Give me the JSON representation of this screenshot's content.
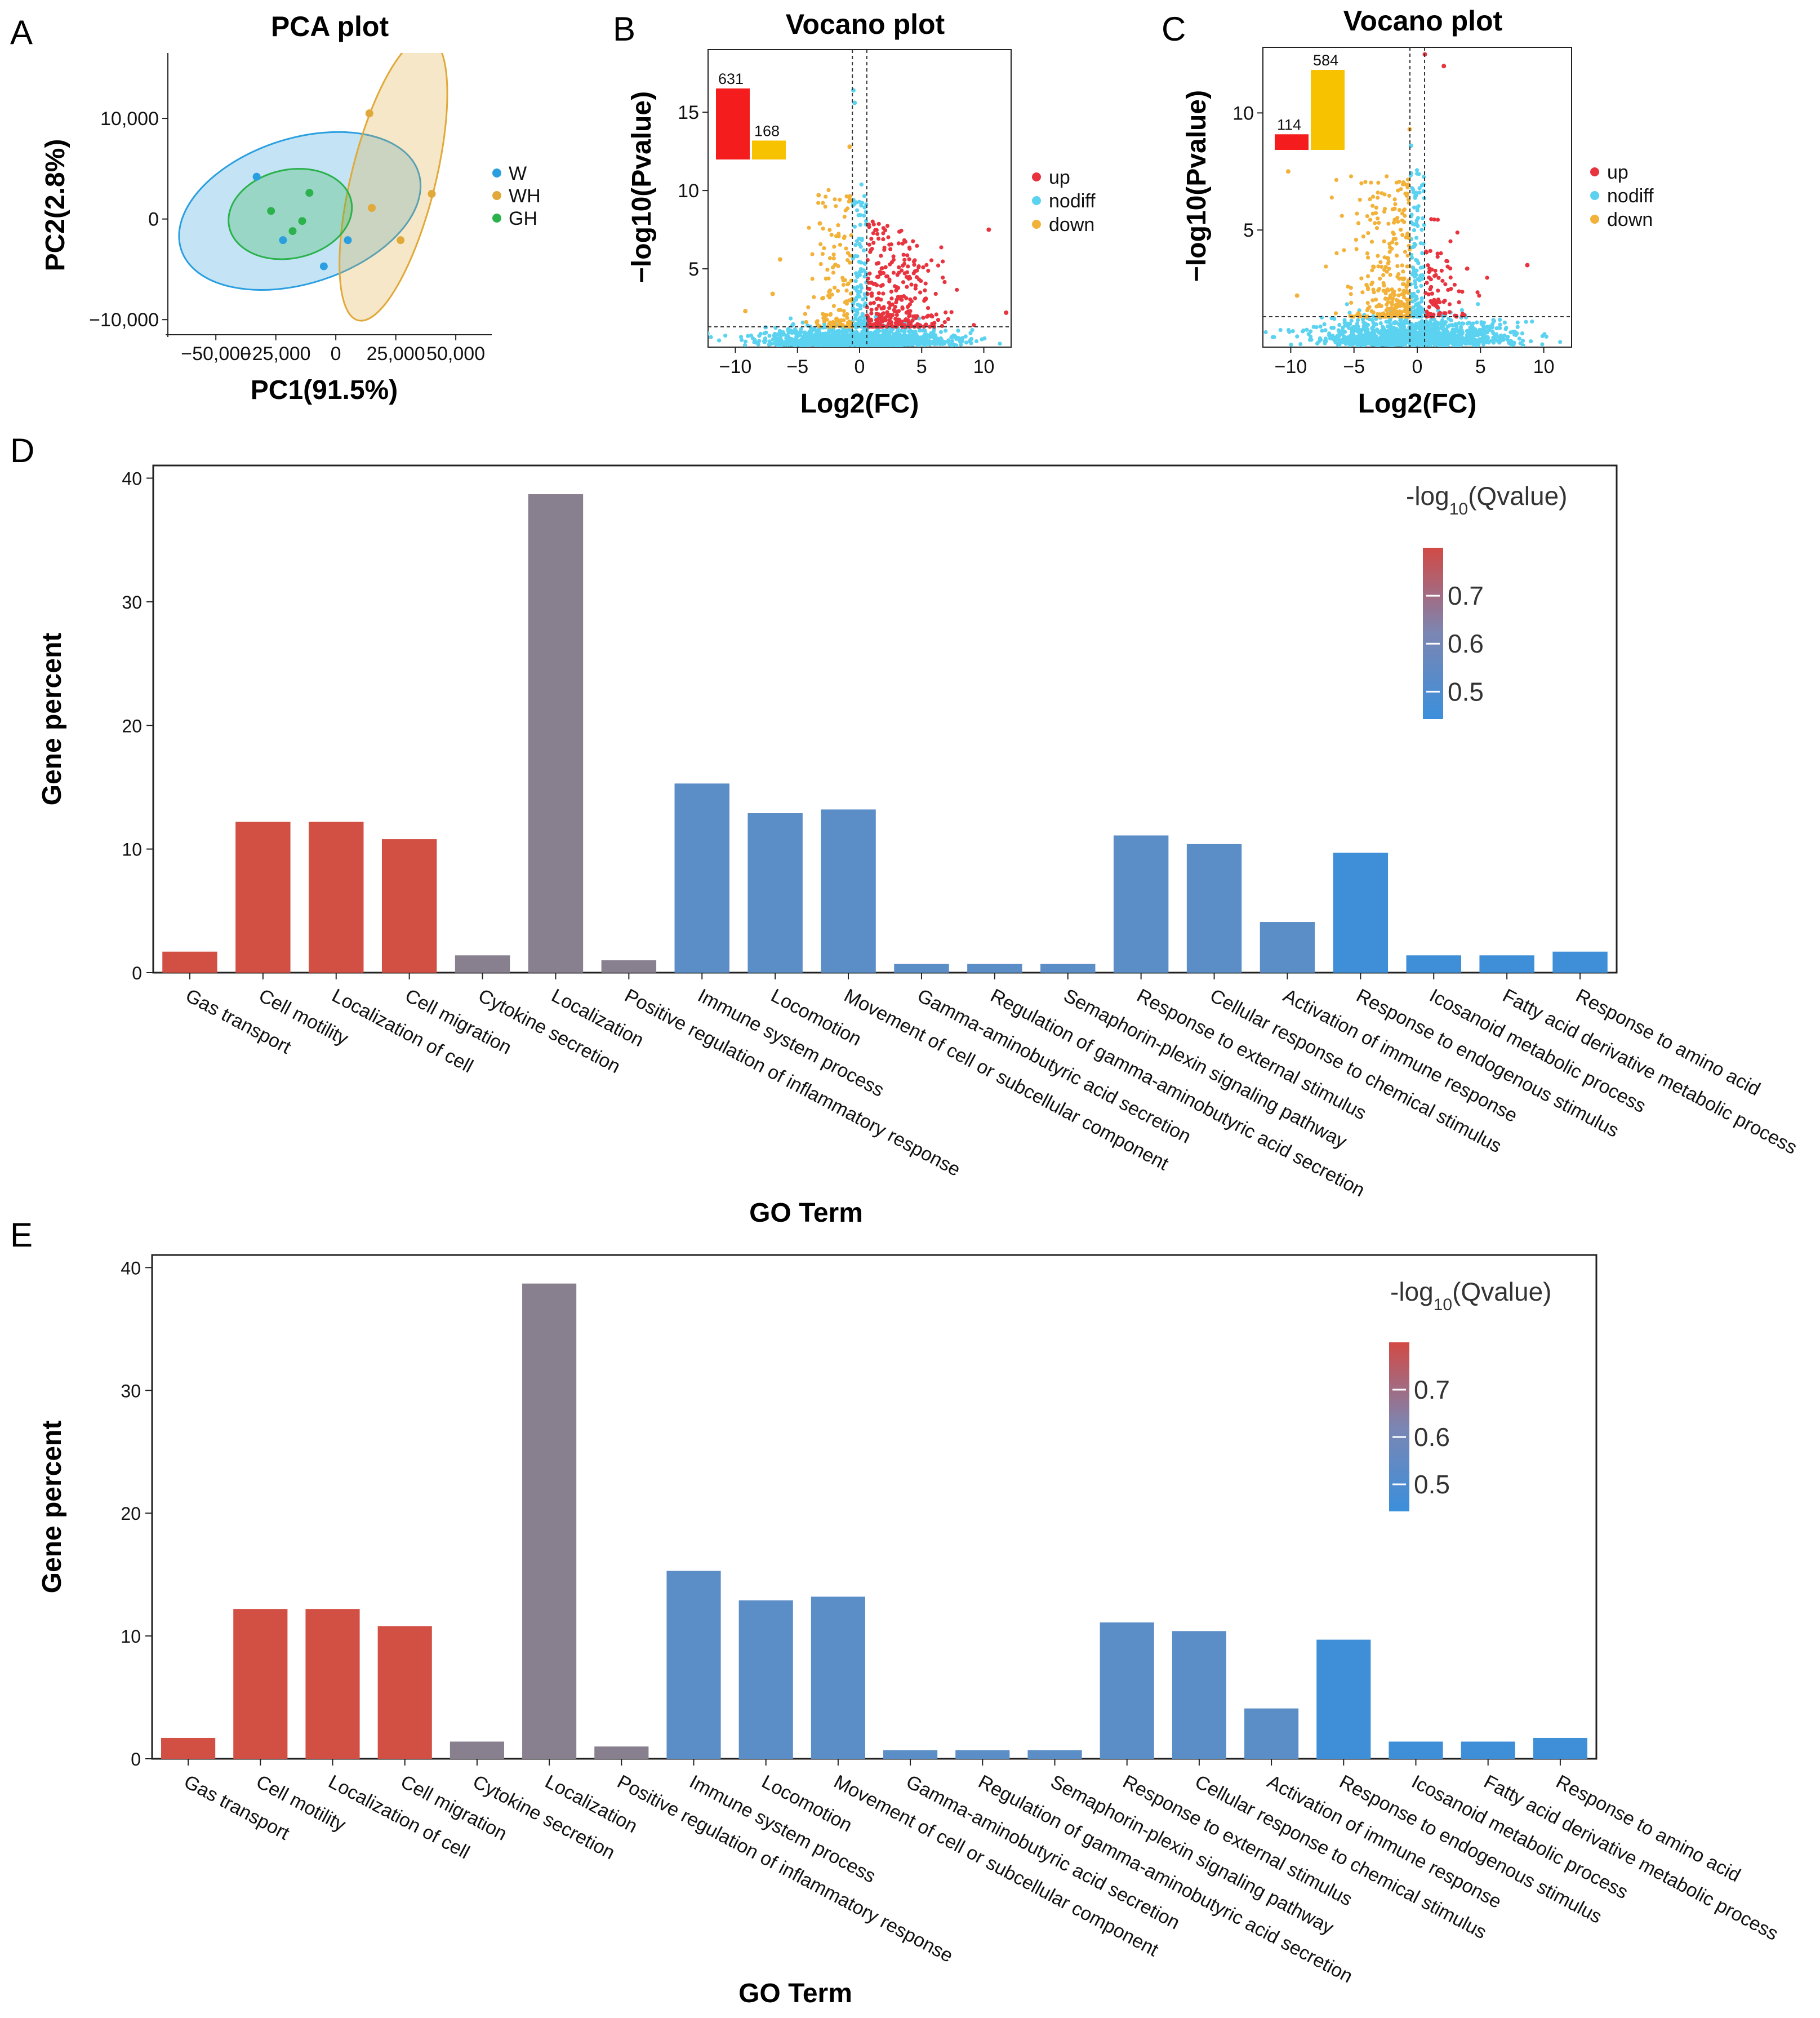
{
  "panels": {
    "A": "A",
    "B": "B",
    "C": "C",
    "D": "D",
    "E": "E"
  },
  "colors": {
    "W": "#2a9fe0",
    "WH": "#e0a93a",
    "GH": "#2bb24c",
    "up": "#e8343f",
    "nodiff": "#5ad2f0",
    "down": "#f2b23a",
    "bar_up": "#f41c1c",
    "bar_down": "#f7c200",
    "go_red": "#d24f44",
    "go_purple": "#89808f",
    "go_blue": "#5b8dc7",
    "go_bright": "#3e8fd8",
    "cb_top": "#d24a45",
    "cb_mid": "#7b86b3",
    "cb_bottom": "#3b8fdc"
  },
  "chart_data": [
    {
      "type": "scatter",
      "panel": "A",
      "title": "PCA plot",
      "xlabel": "PC1(91.5%)",
      "ylabel": "PC2(2.8%)",
      "xlim": [
        -70000,
        65000
      ],
      "ylim": [
        -11500,
        16500
      ],
      "xticks": [
        -50000,
        -25000,
        0,
        25000,
        50000
      ],
      "xtick_labels": [
        "−50,000",
        "−25,000",
        "0",
        "25,000",
        "50,000"
      ],
      "yticks": [
        -10000,
        0,
        10000
      ],
      "ytick_labels": [
        "−10,000",
        "0",
        "10,000"
      ],
      "legend_position": "right",
      "series": [
        {
          "name": "W",
          "points": [
            [
              -33000,
              4200
            ],
            [
              -22000,
              -2100
            ],
            [
              5000,
              -2100
            ],
            [
              -5000,
              -4700
            ]
          ],
          "ellipse": {
            "cx": -15000,
            "cy": 800,
            "rx": 52000,
            "ry": 7200,
            "angle": -18
          }
        },
        {
          "name": "WH",
          "points": [
            [
              14000,
              10500
            ],
            [
              40000,
              2500
            ],
            [
              15000,
              1100
            ],
            [
              27000,
              -2100
            ]
          ],
          "ellipse": {
            "cx": 24000,
            "cy": 4000,
            "rx": 17500,
            "ry": 14500,
            "angle": 14
          }
        },
        {
          "name": "GH",
          "points": [
            [
              -27000,
              800
            ],
            [
              -11000,
              2600
            ],
            [
              -18000,
              -1200
            ],
            [
              -14000,
              -200
            ]
          ],
          "ellipse": {
            "cx": -19000,
            "cy": 500,
            "rx": 26000,
            "ry": 4400,
            "angle": -12
          }
        }
      ]
    },
    {
      "type": "scatter",
      "panel": "B",
      "title": "Vocano plot",
      "xlabel": "Log2(FC)",
      "ylabel": "−log10(Pvalue)",
      "xlim": [
        -12.2,
        12.2
      ],
      "ylim": [
        0,
        19
      ],
      "xticks": [
        -10,
        -5,
        0,
        5,
        10
      ],
      "xtick_labels": [
        "−10",
        "−5",
        "0",
        "5",
        "10"
      ],
      "yticks": [
        5,
        10,
        15
      ],
      "ytick_labels": [
        "5",
        "10",
        "15"
      ],
      "vlines": [
        -0.58,
        0.58
      ],
      "hline": 1.3,
      "legend": [
        "up",
        "nodiff",
        "down"
      ],
      "legend_position": "right",
      "inset_bars": [
        {
          "name": "up",
          "value": 631
        },
        {
          "name": "down",
          "value": 168
        }
      ],
      "highlight_points": [
        [
          10.4,
          7.5
        ],
        [
          11.8,
          2.2
        ],
        [
          -0.5,
          16.4
        ],
        [
          -0.4,
          15.6
        ],
        [
          -3.3,
          9.7
        ],
        [
          -3.2,
          7.9
        ],
        [
          -6.4,
          5.6
        ],
        [
          -9.2,
          2.3
        ],
        [
          -7.0,
          3.4
        ],
        [
          -0.8,
          12.8
        ]
      ]
    },
    {
      "type": "scatter",
      "panel": "C",
      "title": "Vocano plot",
      "xlabel": "Log2(FC)",
      "ylabel": "−log10(Pvalue)",
      "xlim": [
        -12.2,
        12.2
      ],
      "ylim": [
        0,
        12.8
      ],
      "xticks": [
        -10,
        -5,
        0,
        5,
        10
      ],
      "xtick_labels": [
        "−10",
        "−5",
        "0",
        "5",
        "10"
      ],
      "yticks": [
        5,
        10
      ],
      "ytick_labels": [
        "5",
        "10"
      ],
      "vlines": [
        -0.58,
        0.58
      ],
      "hline": 1.3,
      "legend": [
        "up",
        "nodiff",
        "down"
      ],
      "legend_position": "right",
      "inset_bars": [
        {
          "name": "up",
          "value": 114
        },
        {
          "name": "down",
          "value": 584
        }
      ],
      "highlight_points": [
        [
          0.6,
          12.5
        ],
        [
          2.1,
          12.0
        ],
        [
          -10.2,
          7.5
        ],
        [
          8.7,
          3.5
        ],
        [
          -9.5,
          2.2
        ],
        [
          -0.5,
          8.6
        ],
        [
          -0.6,
          9.3
        ]
      ]
    },
    {
      "type": "bar",
      "panel": "D",
      "xlabel": "GO Term",
      "ylabel": "Gene percent",
      "ylim": [
        0,
        40
      ],
      "yticks": [
        0,
        10,
        20,
        30,
        40
      ],
      "categories": [
        "Gas transport",
        "Cell motility",
        "Localization of cell",
        "Cell migration",
        "Cytokine secretion",
        "Localization",
        "Positive regulation of inflammatory response",
        "Immune system process",
        "Locomotion",
        "Movement of cell or subcellular component",
        "Gamma-aminobutyric acid secretion",
        "Regulation of gamma-aminobutyric acid secretion",
        "Semaphorin-plexin signaling pathway",
        "Response to external stimulus",
        "Cellular response to chemical stimulus",
        "Activation of immune response",
        "Response to endogenous stimulus",
        "Icosanoid metabolic process",
        "Fatty acid derivative metabolic process",
        "Response to amino acid"
      ],
      "values": [
        1.7,
        12.2,
        12.2,
        10.8,
        1.4,
        38.7,
        1.0,
        15.3,
        12.9,
        13.2,
        0.7,
        0.7,
        0.7,
        11.1,
        10.4,
        4.1,
        9.7,
        1.4,
        1.4,
        1.7
      ],
      "qvalues": [
        0.78,
        0.78,
        0.78,
        0.78,
        0.6,
        0.6,
        0.6,
        0.52,
        0.52,
        0.52,
        0.52,
        0.52,
        0.52,
        0.52,
        0.52,
        0.52,
        0.46,
        0.46,
        0.46,
        0.46
      ],
      "colorbar": {
        "title_pre": "-log",
        "title_sub": "10",
        "title_post": "(Qvalue)",
        "ticks": [
          "0.7",
          "0.6",
          "0.5"
        ]
      }
    },
    {
      "type": "bar",
      "panel": "E",
      "xlabel": "GO Term",
      "ylabel": "Gene percent",
      "ylim": [
        0,
        40
      ],
      "yticks": [
        0,
        10,
        20,
        30,
        40
      ],
      "categories": [
        "Gas transport",
        "Cell motility",
        "Localization of cell",
        "Cell migration",
        "Cytokine secretion",
        "Localization",
        "Positive regulation of inflammatory response",
        "Immune system process",
        "Locomotion",
        "Movement of cell or subcellular component",
        "Gamma-aminobutyric acid secretion",
        "Regulation of gamma-aminobutyric acid secretion",
        "Semaphorin-plexin signaling pathway",
        "Response to external stimulus",
        "Cellular response to chemical stimulus",
        "Activation of immune response",
        "Response to endogenous stimulus",
        "Icosanoid metabolic process",
        "Fatty acid derivative metabolic process",
        "Response to amino acid"
      ],
      "values": [
        1.7,
        12.2,
        12.2,
        10.8,
        1.4,
        38.7,
        1.0,
        15.3,
        12.9,
        13.2,
        0.7,
        0.7,
        0.7,
        11.1,
        10.4,
        4.1,
        9.7,
        1.4,
        1.4,
        1.7
      ],
      "qvalues": [
        0.78,
        0.78,
        0.78,
        0.78,
        0.6,
        0.6,
        0.6,
        0.52,
        0.52,
        0.52,
        0.52,
        0.52,
        0.52,
        0.52,
        0.52,
        0.52,
        0.46,
        0.46,
        0.46,
        0.46
      ],
      "colorbar": {
        "title_pre": "-log",
        "title_sub": "10",
        "title_post": "(Qvalue)",
        "ticks": [
          "0.7",
          "0.6",
          "0.5"
        ]
      }
    }
  ]
}
